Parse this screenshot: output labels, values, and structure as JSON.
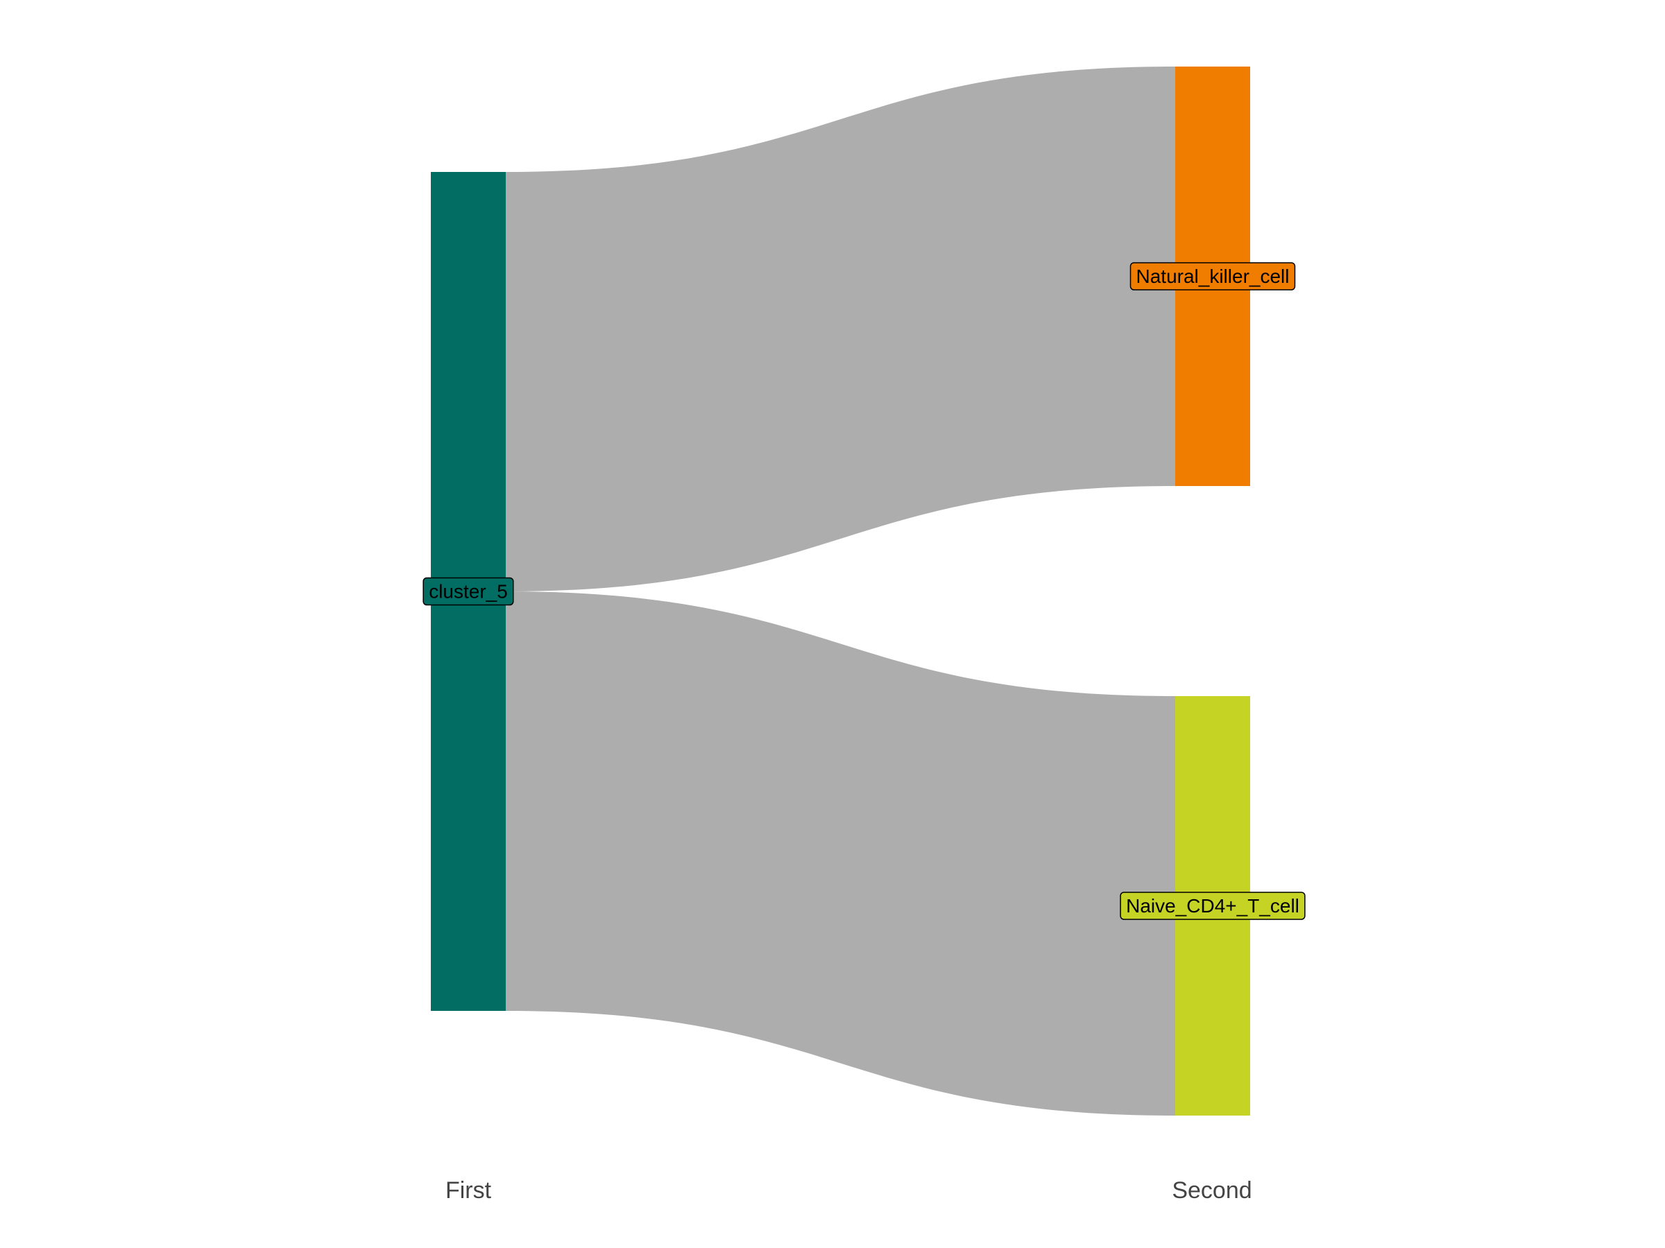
{
  "chart_data": {
    "type": "sankey",
    "axes": [
      "First",
      "Second"
    ],
    "nodes": [
      {
        "id": "cluster_5",
        "label": "cluster_5",
        "stage": 0,
        "color": "#016d63"
      },
      {
        "id": "Natural_killer_cell",
        "label": "Natural_killer_cell",
        "stage": 1,
        "color": "#f07c00"
      },
      {
        "id": "Naive_CD4+_T_cell",
        "label": "Naive_CD4+_T_cell",
        "stage": 1,
        "color": "#c5d324"
      }
    ],
    "links": [
      {
        "source": "cluster_5",
        "target": "Natural_killer_cell",
        "value": 1
      },
      {
        "source": "cluster_5",
        "target": "Naive_CD4+_T_cell",
        "value": 1
      }
    ],
    "link_color": "#adadad"
  }
}
